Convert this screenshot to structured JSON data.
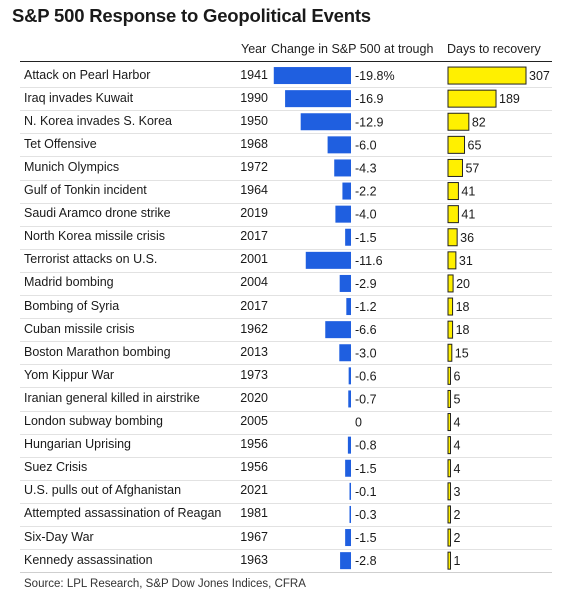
{
  "title": "S&P 500 Response to Geopolitical Events",
  "headers": {
    "year": "Year",
    "change": "Change in S&P 500 at trough",
    "days": "Days to recovery"
  },
  "source": "Source: LPL Research, S&P Dow Jones Indices, CFRA",
  "colors": {
    "change_bar": "#1f5fe0",
    "days_bar": "#fff000",
    "days_border": "#222222"
  },
  "chart_data": [
    {
      "type": "bar",
      "orientation": "horizontal",
      "title": "Change in S&P 500 at trough",
      "xlabel": "",
      "ylabel": "",
      "categories": [
        "Attack on Pearl Harbor",
        "Iraq invades Kuwait",
        "N. Korea invades S. Korea",
        "Tet Offensive",
        "Munich Olympics",
        "Gulf of Tonkin incident",
        "Saudi Aramco drone strike",
        "North Korea missile crisis",
        "Terrorist attacks on U.S.",
        "Madrid bombing",
        "Bombing of Syria",
        "Cuban missile crisis",
        "Boston Marathon bombing",
        "Yom Kippur War",
        "Iranian general killed in airstrike",
        "London subway bombing",
        "Hungarian Uprising",
        "Suez Crisis",
        "U.S. pulls out of Afghanistan",
        "Attempted assassination of Reagan",
        "Six-Day War",
        "Kennedy assassination"
      ],
      "years": [
        "1941",
        "1990",
        "1950",
        "1968",
        "1972",
        "1964",
        "2019",
        "2017",
        "2001",
        "2004",
        "2017",
        "1962",
        "2013",
        "1973",
        "2020",
        "2005",
        "1956",
        "1956",
        "2021",
        "1981",
        "1967",
        "1963"
      ],
      "value_labels": [
        "-19.8%",
        "-16.9",
        "-12.9",
        "-6.0",
        "-4.3",
        "-2.2",
        "-4.0",
        "-1.5",
        "-11.6",
        "-2.9",
        "-1.2",
        "-6.6",
        "-3.0",
        "-0.6",
        "-0.7",
        "0",
        "-0.8",
        "-1.5",
        "-0.1",
        "-0.3",
        "-1.5",
        "-2.8"
      ],
      "values": [
        -19.8,
        -16.9,
        -12.9,
        -6.0,
        -4.3,
        -2.2,
        -4.0,
        -1.5,
        -11.6,
        -2.9,
        -1.2,
        -6.6,
        -3.0,
        -0.6,
        -0.7,
        0,
        -0.8,
        -1.5,
        -0.1,
        -0.3,
        -1.5,
        -2.8
      ],
      "xlim": [
        -20,
        0
      ]
    },
    {
      "type": "bar",
      "orientation": "horizontal",
      "title": "Days to recovery",
      "xlabel": "",
      "ylabel": "",
      "categories": [
        "Attack on Pearl Harbor",
        "Iraq invades Kuwait",
        "N. Korea invades S. Korea",
        "Tet Offensive",
        "Munich Olympics",
        "Gulf of Tonkin incident",
        "Saudi Aramco drone strike",
        "North Korea missile crisis",
        "Terrorist attacks on U.S.",
        "Madrid bombing",
        "Bombing of Syria",
        "Cuban missile crisis",
        "Boston Marathon bombing",
        "Yom Kippur War",
        "Iranian general killed in airstrike",
        "London subway bombing",
        "Hungarian Uprising",
        "Suez Crisis",
        "U.S. pulls out of Afghanistan",
        "Attempted assassination of Reagan",
        "Six-Day War",
        "Kennedy assassination"
      ],
      "value_labels": [
        "307",
        "189",
        "82",
        "65",
        "57",
        "41",
        "41",
        "36",
        "31",
        "20",
        "18",
        "18",
        "15",
        "6",
        "5",
        "4",
        "4",
        "4",
        "3",
        "2",
        "2",
        "1"
      ],
      "values": [
        307,
        189,
        82,
        65,
        57,
        41,
        41,
        36,
        31,
        20,
        18,
        18,
        15,
        6,
        5,
        4,
        4,
        4,
        3,
        2,
        2,
        1
      ],
      "xlim": [
        0,
        307
      ]
    }
  ]
}
